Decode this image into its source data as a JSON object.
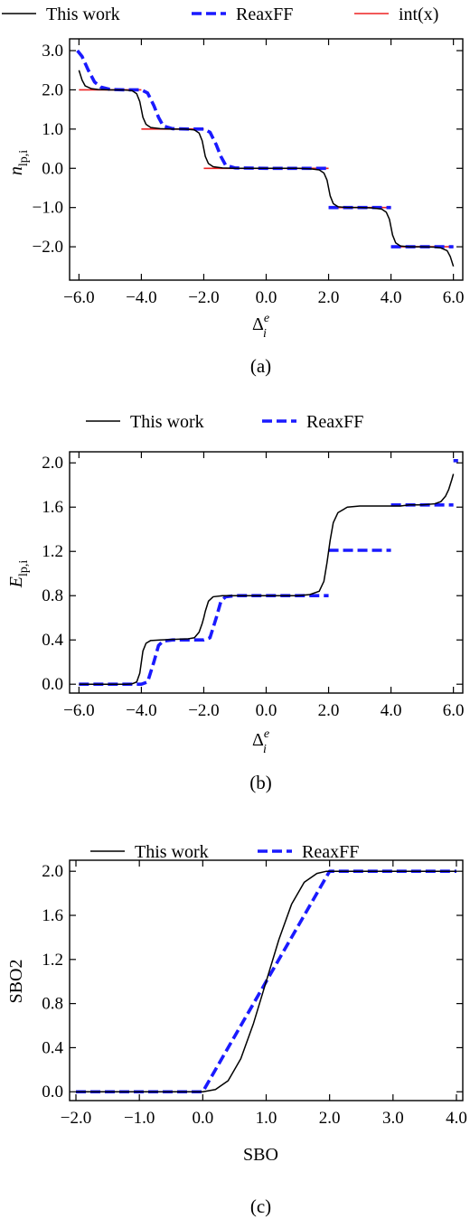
{
  "chart_data": [
    {
      "type": "line",
      "panel": "a",
      "caption": "(a)",
      "xlabel": "Δ",
      "xlabel_sub": "i",
      "xlabel_sup": "e",
      "ylabel": "n",
      "ylabel_sub": "lp,i",
      "xlim": [
        -6.3,
        6.3
      ],
      "ylim": [
        -2.85,
        3.3
      ],
      "xticks": [
        -6,
        -4,
        -2,
        0,
        2,
        4,
        6
      ],
      "xtick_labels": [
        "−6.0",
        "−4.0",
        "−2.0",
        "0.0",
        "2.0",
        "4.0",
        "6.0"
      ],
      "yticks": [
        -2,
        -1,
        0,
        1,
        2,
        3
      ],
      "ytick_labels": [
        "−2.0",
        "−1.0",
        "0.0",
        "1.0",
        "2.0",
        "3.0"
      ],
      "legend": [
        "This work",
        "ReaxFF",
        "int(x)"
      ],
      "legend_placement": "top",
      "series": [
        {
          "name": "This work",
          "color": "#000000",
          "style": "solid",
          "x": [
            -6.0,
            -5.9,
            -5.8,
            -5.6,
            -5.4,
            -5.0,
            -4.6,
            -4.3,
            -4.15,
            -4.05,
            -4.0,
            -3.95,
            -3.85,
            -3.7,
            -3.4,
            -3.0,
            -2.6,
            -2.3,
            -2.15,
            -2.05,
            -2.0,
            -1.95,
            -1.85,
            -1.7,
            -1.4,
            -1.0,
            0.0,
            1.0,
            1.4,
            1.7,
            1.85,
            1.95,
            2.0,
            2.05,
            2.15,
            2.3,
            2.6,
            3.0,
            3.4,
            3.7,
            3.85,
            3.95,
            4.0,
            4.05,
            4.15,
            4.3,
            4.6,
            5.0,
            5.4,
            5.6,
            5.8,
            5.9,
            6.0
          ],
          "y": [
            2.5,
            2.25,
            2.1,
            2.03,
            2.01,
            2.0,
            2.0,
            1.98,
            1.9,
            1.7,
            1.5,
            1.3,
            1.12,
            1.04,
            1.01,
            1.0,
            1.0,
            0.98,
            0.9,
            0.7,
            0.5,
            0.3,
            0.12,
            0.04,
            0.01,
            0.0,
            0.0,
            0.0,
            -0.01,
            -0.04,
            -0.12,
            -0.3,
            -0.5,
            -0.7,
            -0.9,
            -0.98,
            -1.0,
            -1.0,
            -1.01,
            -1.04,
            -1.12,
            -1.3,
            -1.5,
            -1.7,
            -1.9,
            -1.98,
            -2.0,
            -2.0,
            -2.01,
            -2.03,
            -2.1,
            -2.25,
            -2.5
          ]
        },
        {
          "name": "ReaxFF",
          "color": "#1a1aff",
          "style": "dashed",
          "x": [
            -6.05,
            -5.9,
            -5.7,
            -5.5,
            -5.3,
            -5.0,
            -4.5,
            -4.0,
            -3.8,
            -3.6,
            -3.45,
            -3.3,
            -3.0,
            -2.5,
            -2.0,
            -1.8,
            -1.6,
            -1.45,
            -1.3,
            -1.0,
            0.0,
            2.0,
            2.0,
            4.0,
            4.0,
            6.0
          ],
          "y": [
            3.0,
            2.85,
            2.5,
            2.2,
            2.07,
            2.01,
            2.0,
            2.0,
            1.92,
            1.6,
            1.3,
            1.08,
            1.01,
            1.0,
            1.0,
            0.92,
            0.6,
            0.3,
            0.08,
            0.01,
            0.0,
            0.0,
            -1.0,
            -1.0,
            -2.0,
            -2.0
          ],
          "breaks_after": [
            21,
            23
          ]
        },
        {
          "name": "int(x)",
          "color": "#ee2222",
          "style": "solid",
          "segments": [
            [
              -6.0,
              -4.0,
              2.0
            ],
            [
              -4.0,
              -2.0,
              1.0
            ],
            [
              -2.0,
              2.0,
              0.0
            ],
            [
              2.0,
              4.0,
              -1.0
            ],
            [
              4.0,
              6.0,
              -2.0
            ]
          ]
        }
      ]
    },
    {
      "type": "line",
      "panel": "b",
      "caption": "(b)",
      "xlabel": "Δ",
      "xlabel_sub": "i",
      "xlabel_sup": "e",
      "ylabel": "E",
      "ylabel_sub": "lp,i",
      "xlim": [
        -6.3,
        6.3
      ],
      "ylim": [
        -0.08,
        2.1
      ],
      "xticks": [
        -6,
        -4,
        -2,
        0,
        2,
        4,
        6
      ],
      "xtick_labels": [
        "−6.0",
        "−4.0",
        "−2.0",
        "0.0",
        "2.0",
        "4.0",
        "6.0"
      ],
      "yticks": [
        0.0,
        0.4,
        0.8,
        1.2,
        1.6,
        2.0
      ],
      "ytick_labels": [
        "0.0",
        "0.4",
        "0.8",
        "1.2",
        "1.6",
        "2.0"
      ],
      "legend": [
        "This work",
        "ReaxFF"
      ],
      "legend_placement": "top",
      "series": [
        {
          "name": "This work",
          "color": "#000000",
          "style": "solid",
          "x": [
            -6.0,
            -5.0,
            -4.5,
            -4.3,
            -4.15,
            -4.05,
            -4.0,
            -3.95,
            -3.85,
            -3.7,
            -3.4,
            -3.0,
            -2.5,
            -2.3,
            -2.15,
            -2.05,
            -2.0,
            -1.95,
            -1.85,
            -1.7,
            -1.4,
            -1.0,
            0.0,
            1.0,
            1.4,
            1.7,
            1.85,
            1.95,
            2.0,
            2.05,
            2.15,
            2.3,
            2.6,
            3.0,
            3.4,
            3.7,
            3.85,
            3.95,
            4.0,
            4.05,
            4.15,
            4.3,
            4.6,
            5.0,
            5.4,
            5.6,
            5.75,
            5.85,
            5.95,
            6.0
          ],
          "y": [
            0.0,
            0.0,
            0.0,
            0.003,
            0.02,
            0.1,
            0.2,
            0.3,
            0.37,
            0.395,
            0.4,
            0.405,
            0.41,
            0.42,
            0.47,
            0.55,
            0.6,
            0.66,
            0.75,
            0.79,
            0.8,
            0.8,
            0.8,
            0.8,
            0.81,
            0.84,
            0.93,
            1.1,
            1.2,
            1.3,
            1.46,
            1.55,
            1.6,
            1.61,
            1.61,
            1.61,
            1.61,
            1.61,
            1.61,
            1.61,
            1.61,
            1.61,
            1.62,
            1.62,
            1.63,
            1.65,
            1.7,
            1.76,
            1.85,
            1.9
          ]
        },
        {
          "name": "ReaxFF",
          "color": "#1a1aff",
          "style": "dashed",
          "x": [
            -6.0,
            -4.0,
            -3.8,
            -3.6,
            -3.45,
            -3.3,
            -3.0,
            -2.0,
            -1.8,
            -1.6,
            -1.45,
            -1.3,
            -1.0,
            0.0,
            2.0,
            2.0,
            4.0,
            4.0,
            6.0,
            6.0,
            6.15
          ],
          "y": [
            0.0,
            0.0,
            0.02,
            0.2,
            0.35,
            0.39,
            0.4,
            0.4,
            0.42,
            0.6,
            0.75,
            0.79,
            0.8,
            0.8,
            0.8,
            1.21,
            1.21,
            1.62,
            1.62,
            2.02,
            2.02
          ],
          "breaks_after": [
            14,
            16,
            18
          ]
        }
      ]
    },
    {
      "type": "line",
      "panel": "c",
      "caption": "(c)",
      "xlabel": "SBO",
      "ylabel": "SBO2",
      "xlim": [
        -2.1,
        4.1
      ],
      "ylim": [
        -0.08,
        2.1
      ],
      "xticks": [
        -2,
        -1,
        0,
        1,
        2,
        3,
        4
      ],
      "xtick_labels": [
        "−2.0",
        "−1.0",
        "0.0",
        "1.0",
        "2.0",
        "3.0",
        "4.0"
      ],
      "yticks": [
        0.0,
        0.4,
        0.8,
        1.2,
        1.6,
        2.0
      ],
      "ytick_labels": [
        "0.0",
        "0.4",
        "0.8",
        "1.2",
        "1.6",
        "2.0"
      ],
      "legend": [
        "This work",
        "ReaxFF"
      ],
      "legend_placement": "top",
      "series": [
        {
          "name": "This work",
          "color": "#000000",
          "style": "solid",
          "x": [
            -2.0,
            0.0,
            0.2,
            0.4,
            0.6,
            0.8,
            1.0,
            1.2,
            1.4,
            1.6,
            1.8,
            1.95,
            2.0,
            4.0
          ],
          "y": [
            0.0,
            0.0,
            0.02,
            0.1,
            0.3,
            0.62,
            1.0,
            1.38,
            1.7,
            1.9,
            1.98,
            2.0,
            2.0,
            2.0
          ]
        },
        {
          "name": "ReaxFF",
          "color": "#1a1aff",
          "style": "dashed",
          "x": [
            -2.0,
            0.0,
            2.0,
            4.0
          ],
          "y": [
            0.0,
            0.0,
            2.0,
            2.0
          ]
        }
      ]
    }
  ]
}
